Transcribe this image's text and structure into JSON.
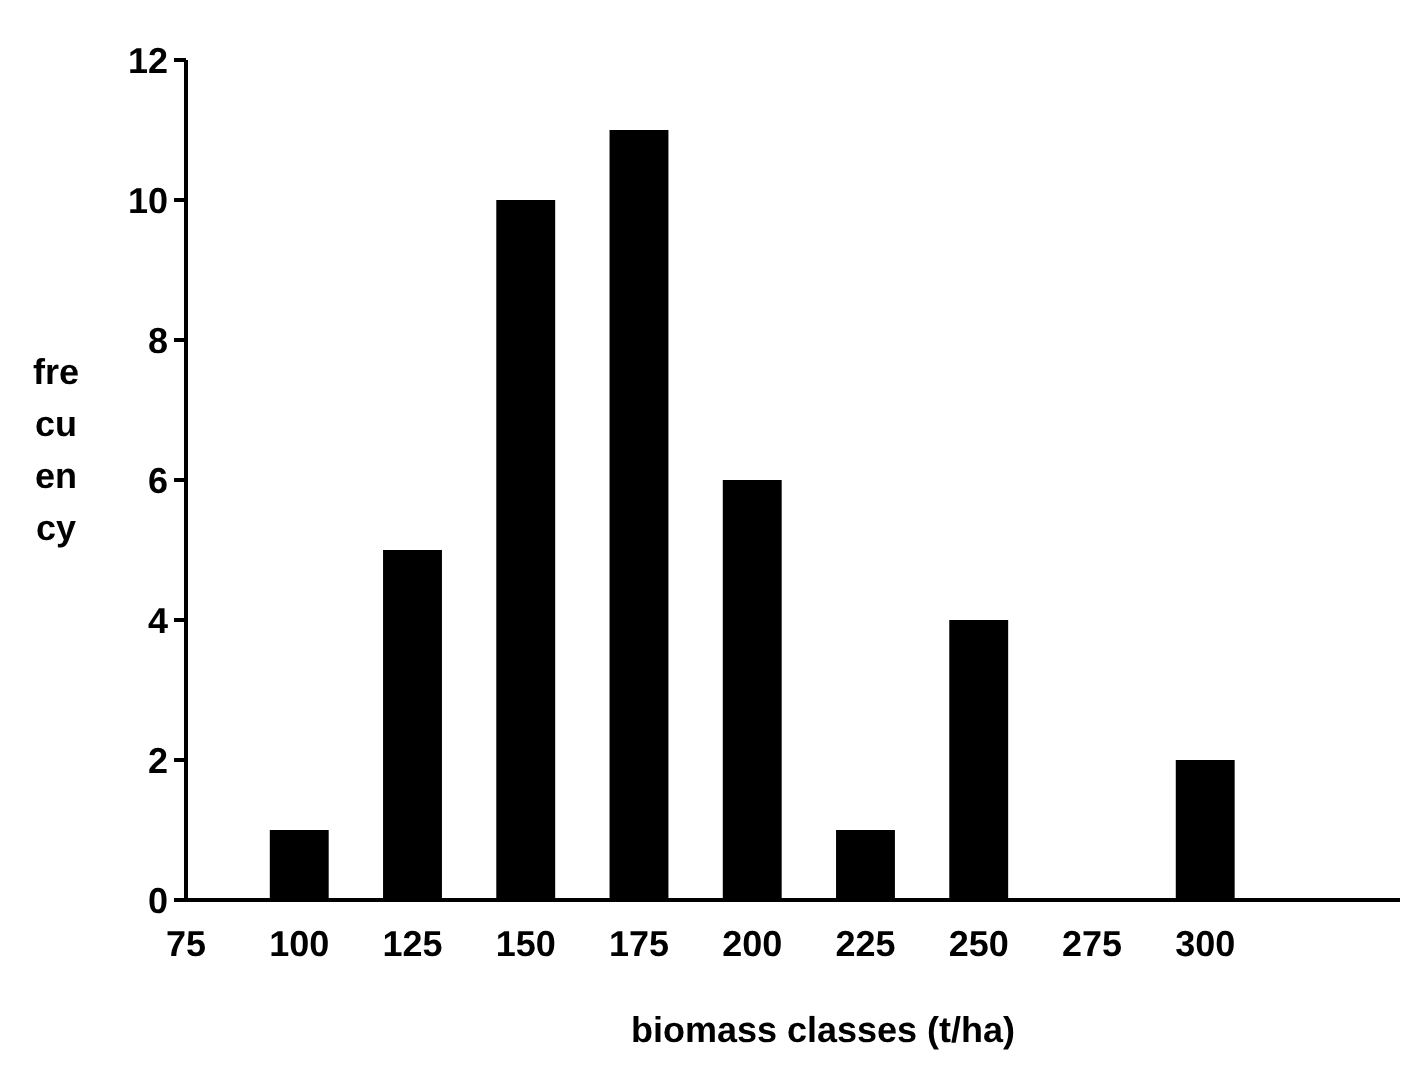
{
  "chart_data": {
    "type": "bar",
    "xlabel": "biomass classes (t/ha)",
    "ylabel": "fre cu en cy",
    "x": [
      100,
      125,
      150,
      175,
      200,
      225,
      250,
      275,
      300
    ],
    "values": [
      1,
      5,
      10,
      11,
      6,
      1,
      4,
      0,
      2
    ],
    "color": "#000000",
    "xlim": [
      75,
      343
    ],
    "xticks": [
      75,
      100,
      125,
      150,
      175,
      200,
      225,
      250,
      275,
      300
    ],
    "ylim": [
      0,
      12
    ],
    "yticks": [
      0,
      2,
      4,
      6,
      8,
      10,
      12
    ],
    "grid": false
  }
}
